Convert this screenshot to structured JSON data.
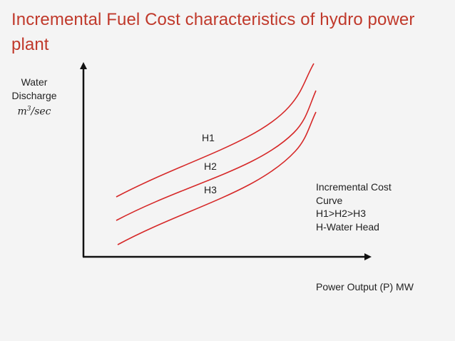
{
  "slide": {
    "title": "Incremental Fuel Cost characteristics of hydro power plant"
  },
  "axes": {
    "y_label_line1": "Water",
    "y_label_line2": "Discharge",
    "y_unit": "m",
    "y_unit_exp": "3",
    "y_unit_rest": "/sec",
    "x_label": "Power Output (P) MW"
  },
  "curves": [
    {
      "label": "H1",
      "color": "#d62828"
    },
    {
      "label": "H2",
      "color": "#d62828"
    },
    {
      "label": "H3",
      "color": "#d62828"
    }
  ],
  "legend": {
    "line1": "Incremental Cost",
    "line2": "Curve",
    "line3": "H1>H2>H3",
    "line4": "H-Water Head"
  }
}
